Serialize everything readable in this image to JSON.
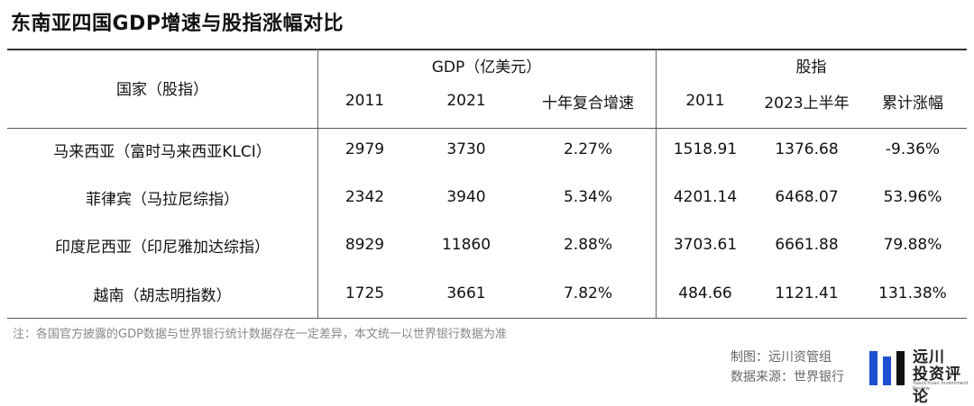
{
  "chart_data": {
    "type": "table",
    "title": "东南亚四国GDP增速与股指涨幅对比",
    "group_headers": [
      "GDP（亿美元）",
      "股指"
    ],
    "row_header": "国家（股指）",
    "columns": [
      "2011",
      "2021",
      "十年复合增速",
      "2011",
      "2023上半年",
      "累计涨幅"
    ],
    "rows": [
      {
        "name": "马来西亚（富时马来西亚KLCI）",
        "values": [
          "2979",
          "3730",
          "2.27%",
          "1518.91",
          "1376.68",
          "-9.36%"
        ]
      },
      {
        "name": "菲律宾（马拉尼综指）",
        "values": [
          "2342",
          "3940",
          "5.34%",
          "4201.14",
          "6468.07",
          "53.96%"
        ]
      },
      {
        "name": "印度尼西亚（印尼雅加达综指）",
        "values": [
          "8929",
          "11860",
          "2.88%",
          "3703.61",
          "6661.88",
          "79.88%"
        ]
      },
      {
        "name": "越南（胡志明指数）",
        "values": [
          "1725",
          "3661",
          "7.82%",
          "484.66",
          "1121.41",
          "131.38%"
        ]
      }
    ]
  },
  "footer": {
    "note": "注：各国官方披露的GDP数据与世界银行统计数据存在一定差异，本文统一以世界银行数据为准",
    "made_by": "制图：远川资管组",
    "source": "数据来源：世界银行"
  },
  "logo": {
    "line1": "远川",
    "line2": "投资评论",
    "line3": "YuanChuan Investment Review",
    "colors": [
      "#1f4fd1",
      "#111111"
    ]
  }
}
